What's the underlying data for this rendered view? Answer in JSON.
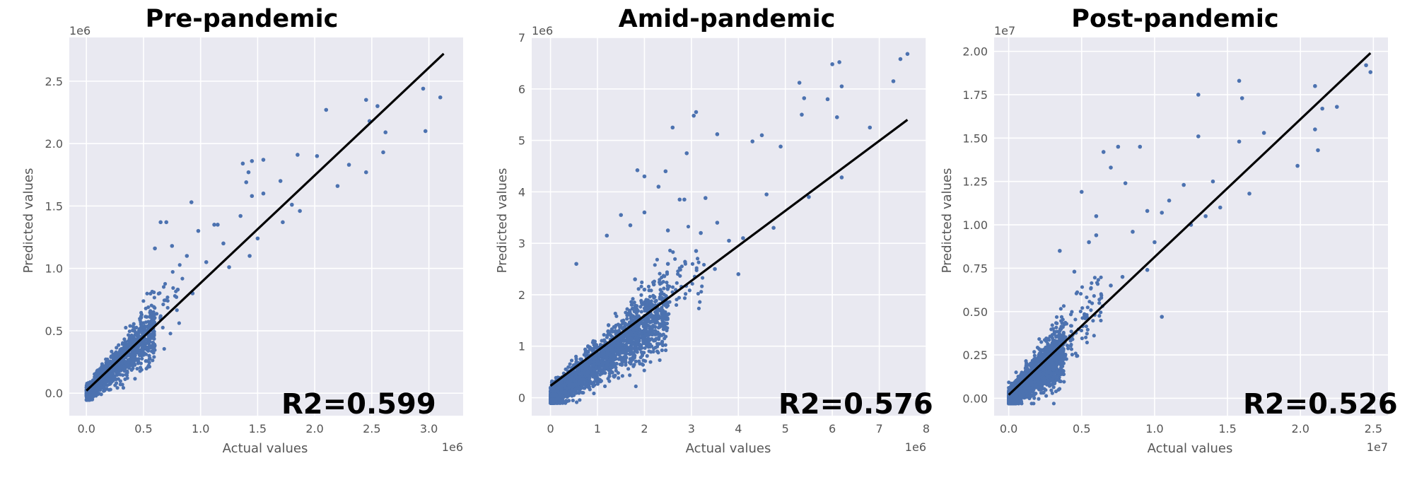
{
  "chart_data": [
    {
      "type": "scatter",
      "title": "Pre-pandemic",
      "xlabel": "Actual values",
      "ylabel": "Predicted values",
      "x_offset_label": "1e6",
      "y_offset_label": "1e6",
      "annotation": "R2=0.599",
      "xlim": [
        -0.15,
        3.3
      ],
      "ylim": [
        -0.18,
        2.85
      ],
      "xticks": [
        0.0,
        0.5,
        1.0,
        1.5,
        2.0,
        2.5,
        3.0
      ],
      "xtick_labels": [
        "0.0",
        "0.5",
        "1.0",
        "1.5",
        "2.0",
        "2.5",
        "3.0"
      ],
      "yticks": [
        0.0,
        0.5,
        1.0,
        1.5,
        2.0,
        2.5
      ],
      "ytick_labels": [
        "0.0",
        "0.5",
        "1.0",
        "1.5",
        "2.0",
        "2.5"
      ],
      "fit_line": {
        "x": [
          0.0,
          3.13
        ],
        "y": [
          0.02,
          2.72
        ]
      },
      "points": [
        [
          2.95,
          2.44
        ],
        [
          3.1,
          2.37
        ],
        [
          2.97,
          2.1
        ],
        [
          2.55,
          2.3
        ],
        [
          2.48,
          2.18
        ],
        [
          2.62,
          2.09
        ],
        [
          2.45,
          2.35
        ],
        [
          2.6,
          1.93
        ],
        [
          2.45,
          1.77
        ],
        [
          2.3,
          1.83
        ],
        [
          2.1,
          2.27
        ],
        [
          2.2,
          1.66
        ],
        [
          2.02,
          1.9
        ],
        [
          1.85,
          1.91
        ],
        [
          1.55,
          1.87
        ],
        [
          1.45,
          1.86
        ],
        [
          1.45,
          1.58
        ],
        [
          1.37,
          1.84
        ],
        [
          1.42,
          1.77
        ],
        [
          1.4,
          1.69
        ],
        [
          1.35,
          1.42
        ],
        [
          1.72,
          1.37
        ],
        [
          1.8,
          1.51
        ],
        [
          1.87,
          1.46
        ],
        [
          1.5,
          1.24
        ],
        [
          1.43,
          1.1
        ],
        [
          1.25,
          1.01
        ],
        [
          1.15,
          1.35
        ],
        [
          1.12,
          1.35
        ],
        [
          0.92,
          1.53
        ],
        [
          0.7,
          1.37
        ],
        [
          0.65,
          1.37
        ],
        [
          0.6,
          1.16
        ],
        [
          0.75,
          1.18
        ],
        [
          0.88,
          1.1
        ],
        [
          0.98,
          1.3
        ],
        [
          0.93,
          0.8
        ],
        [
          0.8,
          0.83
        ],
        [
          1.55,
          1.6
        ],
        [
          1.7,
          1.7
        ],
        [
          1.2,
          1.2
        ],
        [
          1.05,
          1.05
        ]
      ],
      "cloud": {
        "count": 1100,
        "x_max": 0.6,
        "slope": 0.85,
        "spread": 0.09,
        "tail_count": 70,
        "tail_x_max": 0.85
      }
    },
    {
      "type": "scatter",
      "title": "Amid-pandemic",
      "xlabel": "Actual values",
      "ylabel": "Predicted values",
      "x_offset_label": "1e6",
      "y_offset_label": "1e6",
      "annotation": "R2=0.576",
      "xlim": [
        -0.4,
        8.0
      ],
      "ylim": [
        -0.35,
        7.0
      ],
      "xticks": [
        0,
        1,
        2,
        3,
        4,
        5,
        6,
        7,
        8
      ],
      "xtick_labels": [
        "0",
        "1",
        "2",
        "3",
        "4",
        "5",
        "6",
        "7",
        "8"
      ],
      "yticks": [
        0,
        1,
        2,
        3,
        4,
        5,
        6,
        7
      ],
      "ytick_labels": [
        "0",
        "1",
        "2",
        "3",
        "4",
        "5",
        "6",
        "7"
      ],
      "fit_line": {
        "x": [
          0.0,
          7.6
        ],
        "y": [
          0.23,
          5.4
        ]
      },
      "points": [
        [
          7.6,
          6.68
        ],
        [
          7.45,
          6.58
        ],
        [
          7.3,
          6.15
        ],
        [
          6.15,
          6.52
        ],
        [
          6.0,
          6.48
        ],
        [
          5.9,
          5.8
        ],
        [
          6.2,
          6.05
        ],
        [
          6.1,
          5.45
        ],
        [
          6.8,
          5.25
        ],
        [
          5.3,
          6.12
        ],
        [
          5.4,
          5.82
        ],
        [
          5.35,
          5.5
        ],
        [
          4.9,
          4.88
        ],
        [
          4.5,
          5.1
        ],
        [
          4.3,
          4.98
        ],
        [
          3.1,
          5.55
        ],
        [
          3.05,
          5.48
        ],
        [
          2.9,
          4.75
        ],
        [
          3.55,
          5.12
        ],
        [
          2.6,
          5.25
        ],
        [
          2.45,
          4.4
        ],
        [
          1.85,
          4.42
        ],
        [
          2.0,
          4.3
        ],
        [
          2.3,
          4.1
        ],
        [
          2.75,
          3.85
        ],
        [
          2.85,
          3.85
        ],
        [
          3.3,
          3.88
        ],
        [
          3.55,
          3.4
        ],
        [
          2.0,
          3.6
        ],
        [
          1.5,
          3.55
        ],
        [
          1.7,
          3.35
        ],
        [
          2.5,
          3.25
        ],
        [
          3.2,
          3.2
        ],
        [
          3.8,
          3.05
        ],
        [
          4.1,
          3.1
        ],
        [
          4.6,
          3.95
        ],
        [
          4.75,
          3.3
        ],
        [
          6.2,
          4.28
        ],
        [
          5.5,
          3.9
        ],
        [
          4.0,
          2.4
        ],
        [
          3.5,
          2.5
        ],
        [
          3.1,
          2.85
        ],
        [
          2.5,
          2.6
        ],
        [
          0.55,
          2.6
        ],
        [
          1.2,
          3.15
        ],
        [
          2.0,
          2.1
        ],
        [
          2.2,
          2.2
        ],
        [
          1.8,
          2.3
        ]
      ],
      "cloud": {
        "count": 2300,
        "x_max": 2.5,
        "slope": 0.68,
        "spread": 0.28,
        "tail_count": 100,
        "tail_x_max": 3.3
      }
    },
    {
      "type": "scatter",
      "title": "Post-pandemic",
      "xlabel": "Actual values",
      "ylabel": "Predicted values",
      "x_offset_label": "1e7",
      "y_offset_label": "1e7",
      "annotation": "R2=0.526",
      "xlim": [
        -0.1,
        2.6
      ],
      "ylim": [
        -0.1,
        2.08
      ],
      "xticks": [
        0.0,
        0.5,
        1.0,
        1.5,
        2.0,
        2.5
      ],
      "xtick_labels": [
        "0.0",
        "0.5",
        "1.0",
        "1.5",
        "2.0",
        "2.5"
      ],
      "yticks": [
        0.0,
        0.25,
        0.5,
        0.75,
        1.0,
        1.25,
        1.5,
        1.75,
        2.0
      ],
      "ytick_labels": [
        "0.00",
        "0.25",
        "0.50",
        "0.75",
        "1.00",
        "1.25",
        "1.50",
        "1.75",
        "2.00"
      ],
      "fit_line": {
        "x": [
          0.0,
          2.48
        ],
        "y": [
          0.02,
          1.99
        ]
      },
      "points": [
        [
          2.45,
          1.92
        ],
        [
          2.48,
          1.88
        ],
        [
          2.1,
          1.8
        ],
        [
          2.25,
          1.68
        ],
        [
          2.15,
          1.67
        ],
        [
          2.1,
          1.55
        ],
        [
          2.12,
          1.43
        ],
        [
          1.98,
          1.34
        ],
        [
          1.75,
          1.53
        ],
        [
          1.58,
          1.83
        ],
        [
          1.6,
          1.73
        ],
        [
          1.58,
          1.48
        ],
        [
          1.65,
          1.18
        ],
        [
          1.45,
          1.1
        ],
        [
          1.3,
          1.75
        ],
        [
          1.3,
          1.51
        ],
        [
          1.2,
          1.23
        ],
        [
          1.1,
          1.14
        ],
        [
          1.05,
          1.07
        ],
        [
          0.95,
          1.08
        ],
        [
          0.9,
          1.45
        ],
        [
          0.75,
          1.45
        ],
        [
          0.65,
          1.42
        ],
        [
          0.7,
          1.33
        ],
        [
          0.8,
          1.24
        ],
        [
          0.6,
          1.05
        ],
        [
          0.5,
          1.19
        ],
        [
          0.55,
          0.9
        ],
        [
          0.95,
          0.74
        ],
        [
          1.05,
          0.47
        ],
        [
          0.6,
          0.94
        ],
        [
          0.85,
          0.96
        ],
        [
          1.0,
          0.9
        ],
        [
          0.35,
          0.85
        ],
        [
          0.45,
          0.73
        ],
        [
          1.25,
          1.0
        ],
        [
          1.35,
          1.05
        ],
        [
          1.4,
          1.25
        ],
        [
          0.7,
          0.65
        ],
        [
          0.78,
          0.7
        ]
      ],
      "cloud": {
        "count": 1900,
        "x_max": 0.38,
        "slope": 0.72,
        "spread": 0.07,
        "tail_count": 120,
        "tail_x_max": 0.65
      }
    }
  ]
}
